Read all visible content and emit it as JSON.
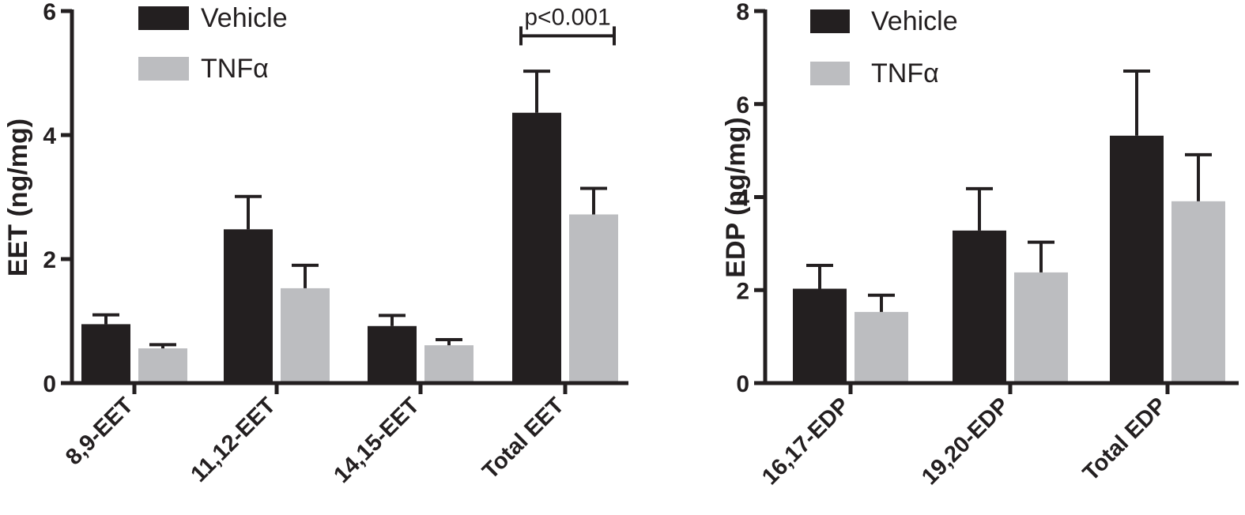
{
  "colors": {
    "vehicle": "#231f20",
    "tnf": "#bcbdc0",
    "axis": "#231f20"
  },
  "chart_data": [
    {
      "type": "bar",
      "ylabel": "EET (ng/mg)",
      "xlabel": "",
      "ylim": [
        0,
        6
      ],
      "yticks": [
        0,
        2,
        4,
        6
      ],
      "categories": [
        "8,9-EET",
        "11,12-EET",
        "14,15-EET",
        "Total EET"
      ],
      "series": [
        {
          "name": "Vehicle",
          "values": [
            0.95,
            2.48,
            0.92,
            4.36
          ],
          "error": [
            0.15,
            0.53,
            0.17,
            0.67
          ]
        },
        {
          "name": "TNFα",
          "values": [
            0.56,
            1.53,
            0.61,
            2.72
          ],
          "error": [
            0.06,
            0.37,
            0.09,
            0.42
          ]
        }
      ],
      "legend": {
        "placement": "top-left"
      },
      "annotations": [
        {
          "text": "p<0.001",
          "category": "Total EET",
          "y": 5.6
        }
      ],
      "grid": false
    },
    {
      "type": "bar",
      "ylabel": "EDP (ng/mg)",
      "xlabel": "",
      "ylim": [
        0,
        8
      ],
      "yticks": [
        0,
        2,
        4,
        6,
        8
      ],
      "categories": [
        "16,17-EDP",
        "19,20-EDP",
        "Total EDP"
      ],
      "series": [
        {
          "name": "Vehicle",
          "values": [
            2.03,
            3.28,
            5.32
          ],
          "error": [
            0.5,
            0.9,
            1.39
          ]
        },
        {
          "name": "TNFα",
          "values": [
            1.53,
            2.38,
            3.91
          ],
          "error": [
            0.36,
            0.65,
            1.0
          ]
        }
      ],
      "legend": {
        "placement": "top-left"
      },
      "annotations": [],
      "grid": false
    }
  ]
}
